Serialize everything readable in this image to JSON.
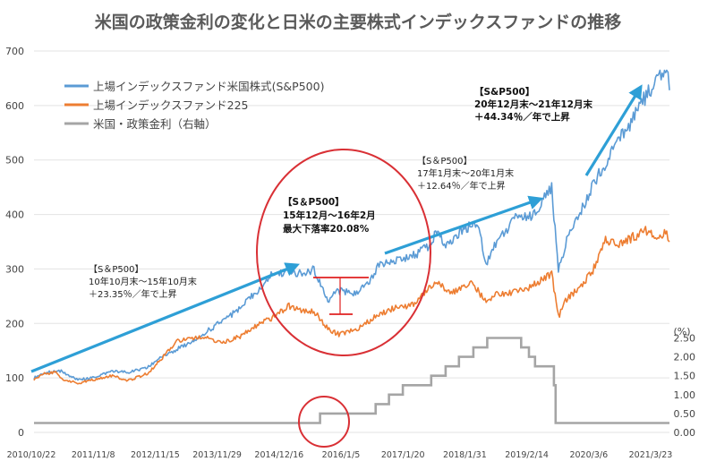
{
  "chart_data": {
    "type": "line",
    "title": "米国の政策金利の変化と日米の主要株式インデックスファンドの推移",
    "xlabel": "",
    "ylabel": "",
    "y2_unit": "(%)",
    "x_ticks": [
      "2010/10/22",
      "2011/11/8",
      "2012/11/15",
      "2013/11/29",
      "2014/12/16",
      "2016/1/5",
      "2017/1/20",
      "2018/1/31",
      "2019/2/14",
      "2020/3/6",
      "2021/3/23"
    ],
    "ylim": [
      0,
      700
    ],
    "y_ticks": [
      0,
      100,
      200,
      300,
      400,
      500,
      600,
      700
    ],
    "y2lim": [
      0,
      2.75
    ],
    "y2_ticks": [
      "0.00",
      "0.50",
      "1.00",
      "1.50",
      "2.00",
      "2.50"
    ],
    "grid": true,
    "legend_position": "top-left",
    "series": [
      {
        "name": "上場インデックスファンド米国株式(S&P500)",
        "color": "#5b9bd5",
        "axis": "left",
        "points": [
          [
            2010.81,
            100
          ],
          [
            2011.0,
            110
          ],
          [
            2011.3,
            112
          ],
          [
            2011.6,
            96
          ],
          [
            2011.85,
            100
          ],
          [
            2012.2,
            112
          ],
          [
            2012.5,
            110
          ],
          [
            2012.85,
            118
          ],
          [
            2013.1,
            140
          ],
          [
            2013.5,
            158
          ],
          [
            2013.85,
            180
          ],
          [
            2014.2,
            205
          ],
          [
            2014.5,
            225
          ],
          [
            2014.85,
            262
          ],
          [
            2015.1,
            290
          ],
          [
            2015.4,
            295
          ],
          [
            2015.7,
            290
          ],
          [
            2015.85,
            300
          ],
          [
            2015.95,
            278
          ],
          [
            2016.1,
            240
          ],
          [
            2016.25,
            260
          ],
          [
            2016.6,
            256
          ],
          [
            2016.85,
            275
          ],
          [
            2017.0,
            305
          ],
          [
            2017.3,
            315
          ],
          [
            2017.6,
            322
          ],
          [
            2017.9,
            340
          ],
          [
            2018.08,
            372
          ],
          [
            2018.2,
            345
          ],
          [
            2018.6,
            375
          ],
          [
            2018.8,
            385
          ],
          [
            2018.95,
            310
          ],
          [
            2019.1,
            345
          ],
          [
            2019.5,
            395
          ],
          [
            2019.8,
            398
          ],
          [
            2020.0,
            430
          ],
          [
            2020.13,
            450
          ],
          [
            2020.25,
            295
          ],
          [
            2020.4,
            355
          ],
          [
            2020.6,
            395
          ],
          [
            2020.85,
            450
          ],
          [
            2021.0,
            478
          ],
          [
            2021.3,
            528
          ],
          [
            2021.6,
            578
          ],
          [
            2021.85,
            620
          ],
          [
            2022.0,
            640
          ],
          [
            2022.2,
            680
          ],
          [
            2022.25,
            628
          ]
        ]
      },
      {
        "name": "上場インデックスファンド225",
        "color": "#ed7d31",
        "axis": "left",
        "points": [
          [
            2010.81,
            97
          ],
          [
            2011.0,
            108
          ],
          [
            2011.2,
            110
          ],
          [
            2011.3,
            98
          ],
          [
            2011.6,
            90
          ],
          [
            2011.85,
            96
          ],
          [
            2012.2,
            104
          ],
          [
            2012.5,
            95
          ],
          [
            2012.85,
            108
          ],
          [
            2013.1,
            135
          ],
          [
            2013.4,
            168
          ],
          [
            2013.7,
            172
          ],
          [
            2013.85,
            175
          ],
          [
            2014.2,
            165
          ],
          [
            2014.5,
            175
          ],
          [
            2014.85,
            198
          ],
          [
            2015.1,
            210
          ],
          [
            2015.4,
            232
          ],
          [
            2015.6,
            225
          ],
          [
            2015.85,
            222
          ],
          [
            2016.1,
            190
          ],
          [
            2016.3,
            180
          ],
          [
            2016.6,
            188
          ],
          [
            2016.85,
            205
          ],
          [
            2017.0,
            215
          ],
          [
            2017.3,
            228
          ],
          [
            2017.6,
            232
          ],
          [
            2017.9,
            262
          ],
          [
            2018.08,
            275
          ],
          [
            2018.3,
            255
          ],
          [
            2018.7,
            275
          ],
          [
            2018.95,
            238
          ],
          [
            2019.1,
            252
          ],
          [
            2019.5,
            258
          ],
          [
            2019.8,
            270
          ],
          [
            2020.0,
            285
          ],
          [
            2020.13,
            292
          ],
          [
            2020.25,
            212
          ],
          [
            2020.4,
            245
          ],
          [
            2020.6,
            262
          ],
          [
            2020.85,
            292
          ],
          [
            2021.1,
            355
          ],
          [
            2021.3,
            345
          ],
          [
            2021.55,
            355
          ],
          [
            2021.8,
            372
          ],
          [
            2022.0,
            355
          ],
          [
            2022.2,
            365
          ],
          [
            2022.25,
            350
          ]
        ]
      },
      {
        "name": "米国・政策金利（右軸）",
        "color": "#a5a5a5",
        "axis": "right",
        "points": [
          [
            2010.81,
            0.25
          ],
          [
            2015.96,
            0.25
          ],
          [
            2015.96,
            0.5
          ],
          [
            2016.96,
            0.5
          ],
          [
            2016.96,
            0.75
          ],
          [
            2017.2,
            0.75
          ],
          [
            2017.2,
            1.0
          ],
          [
            2017.45,
            1.0
          ],
          [
            2017.45,
            1.25
          ],
          [
            2017.96,
            1.25
          ],
          [
            2017.96,
            1.5
          ],
          [
            2018.22,
            1.5
          ],
          [
            2018.22,
            1.75
          ],
          [
            2018.46,
            1.75
          ],
          [
            2018.46,
            2.0
          ],
          [
            2018.72,
            2.0
          ],
          [
            2018.72,
            2.25
          ],
          [
            2018.97,
            2.25
          ],
          [
            2018.97,
            2.5
          ],
          [
            2019.58,
            2.5
          ],
          [
            2019.58,
            2.25
          ],
          [
            2019.72,
            2.25
          ],
          [
            2019.72,
            2.0
          ],
          [
            2019.83,
            2.0
          ],
          [
            2019.83,
            1.75
          ],
          [
            2020.17,
            1.75
          ],
          [
            2020.17,
            1.25
          ],
          [
            2020.2,
            1.25
          ],
          [
            2020.2,
            0.25
          ],
          [
            2022.25,
            0.25
          ]
        ]
      }
    ],
    "annotations": [
      {
        "lines": [
          "【S＆P500】",
          "10年10月末～15年10月末",
          "＋23.35％／年で上昇"
        ]
      },
      {
        "lines": [
          "【S＆P500】",
          "15年12月～16年2月",
          "最大下落率20.08%"
        ]
      },
      {
        "lines": [
          "【S＆P500】",
          "17年1月末～20年1月末",
          "＋12.64％／年で上昇"
        ]
      },
      {
        "lines": [
          "【S&P500】",
          "20年12月末～21年12月末",
          "＋44.34％／年で上昇"
        ]
      }
    ],
    "colors": {
      "arrow": "#2e9fd6",
      "circle": "#d93035",
      "drawdown": "#e02020"
    }
  }
}
